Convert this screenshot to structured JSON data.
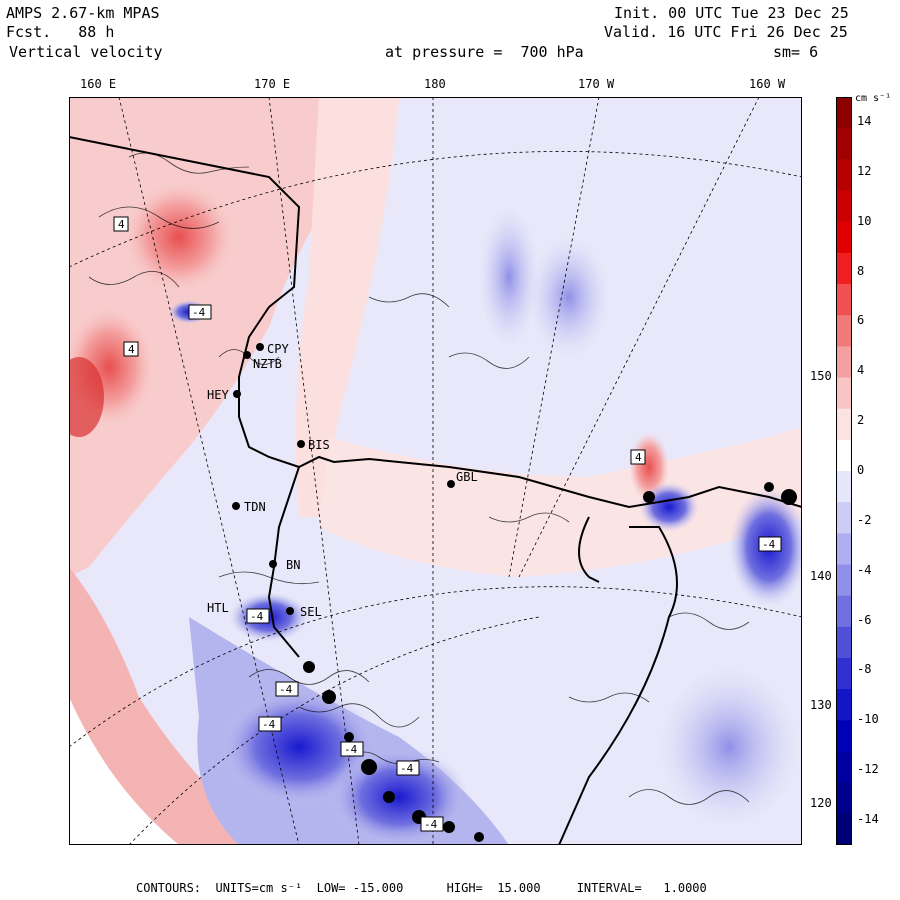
{
  "header": {
    "model": "AMPS 2.67-km MPAS",
    "forecast": "Fcst.   88 h",
    "field": "Vertical velocity",
    "init": "Init. 00 UTC Tue 23 Dec 25",
    "valid": "Valid. 16 UTC Fri 26 Dec 25",
    "pressure": "at pressure =  700 hPa",
    "smoothing": "sm= 6"
  },
  "map": {
    "longitude_labels": [
      "160 E",
      "170 E",
      "180",
      "170 W",
      "160 W"
    ],
    "latitude_labels": [
      "150 W",
      "140 W",
      "130 W",
      "120 W"
    ],
    "stations": [
      {
        "id": "CPY",
        "label": "CPY"
      },
      {
        "id": "NZTB",
        "label": "NZTB"
      },
      {
        "id": "HEY",
        "label": "HEY"
      },
      {
        "id": "BIS",
        "label": "BIS"
      },
      {
        "id": "GBL",
        "label": "GBL"
      },
      {
        "id": "TDN",
        "label": "TDN"
      },
      {
        "id": "BN",
        "label": "BN"
      },
      {
        "id": "HTL",
        "label": "HTL"
      },
      {
        "id": "SEL",
        "label": "SEL"
      }
    ],
    "contour_markers": [
      "4",
      "-4",
      "4",
      "4",
      "-4",
      "-4",
      "-4",
      "-4",
      "-4",
      "-4",
      "-4"
    ]
  },
  "colorbar": {
    "units": "cm s⁻¹",
    "ticks": [
      "14",
      "12",
      "10",
      "8",
      "6",
      "4",
      "2",
      "0",
      "-2",
      "-4",
      "-6",
      "-8",
      "-10",
      "-12",
      "-14"
    ],
    "colors": [
      "#8b0000",
      "#a00000",
      "#b80000",
      "#cc0000",
      "#e00000",
      "#f02020",
      "#f25050",
      "#f07a7a",
      "#f4a0a0",
      "#f8c4c4",
      "#fce2e2",
      "#ffffff",
      "#e6e6fa",
      "#ccccf4",
      "#aeaef0",
      "#9090e8",
      "#7070e0",
      "#4f4fd8",
      "#3030d0",
      "#1515c8",
      "#0000b8",
      "#0000a0",
      "#00008a",
      "#000076"
    ]
  },
  "footer": "CONTOURS:  UNITS=cm s⁻¹  LOW= -15.000      HIGH=  15.000     INTERVAL=   1.0000"
}
